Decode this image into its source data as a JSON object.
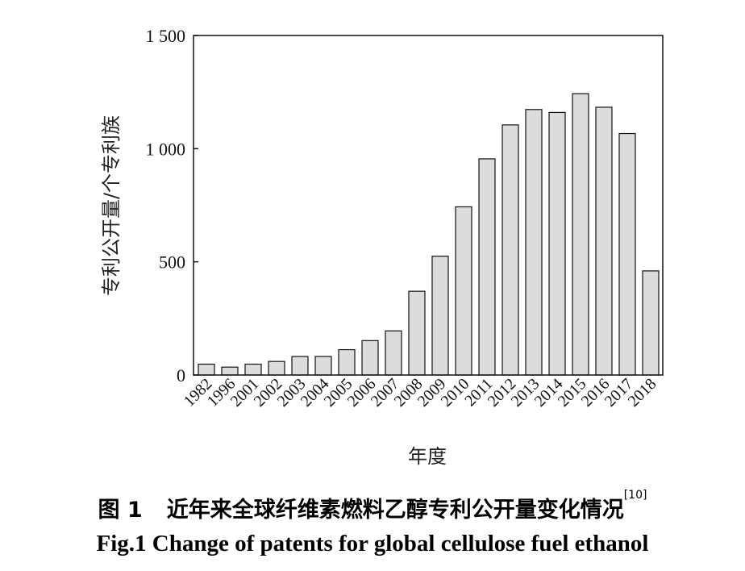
{
  "chart_data": {
    "type": "bar",
    "ylabel": "专利公开量/个专利族",
    "xlabel": "年度",
    "ylim": [
      0,
      1500
    ],
    "yticks": [
      0,
      500,
      1000,
      1500
    ],
    "ytick_labels": [
      "0",
      "500",
      "1 000",
      "1 500"
    ],
    "categories": [
      "1982",
      "1996",
      "2001",
      "2002",
      "2003",
      "2004",
      "2005",
      "2006",
      "2007",
      "2008",
      "2009",
      "2010",
      "2011",
      "2012",
      "2013",
      "2014",
      "2015",
      "2016",
      "2017",
      "2018"
    ],
    "values": [
      48,
      35,
      48,
      60,
      82,
      82,
      112,
      152,
      195,
      370,
      525,
      743,
      955,
      1105,
      1173,
      1160,
      1243,
      1183,
      1067,
      460
    ],
    "bar_color": "#dcdcdc",
    "bar_edge_color": "#111111",
    "grid": false
  },
  "caption": {
    "cn_label": "图 1",
    "cn_text": "近年来全球纤维素燃料乙醇专利公开量变化情况",
    "cn_ref": "[10]",
    "en_text": "Fig.1 Change of patents for global cellulose fuel ethanol"
  }
}
